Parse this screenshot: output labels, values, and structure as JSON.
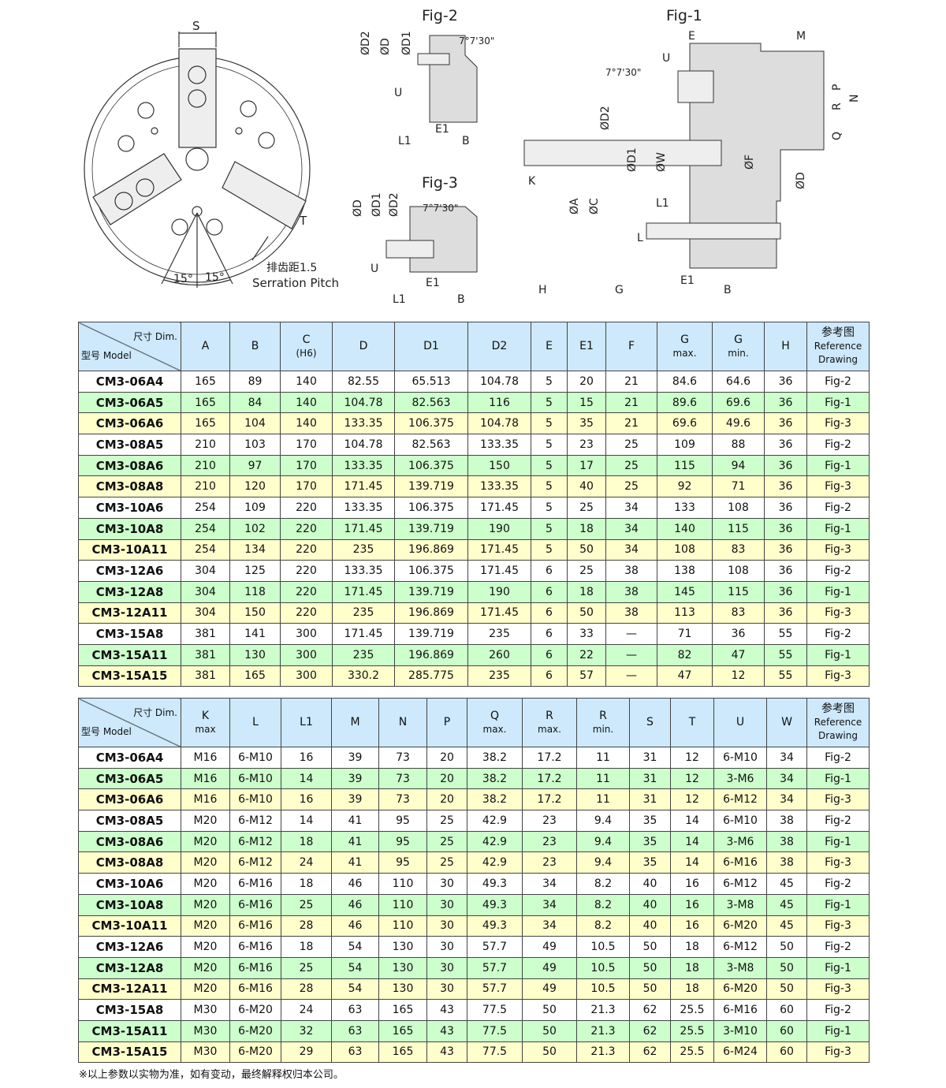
{
  "drawings": {
    "fig1": "Fig-1",
    "fig2": "Fig-2",
    "fig3": "Fig-3",
    "front": {
      "s": "S",
      "t": "T",
      "angle_left": "15°",
      "angle_right": "15°",
      "pitch_cn": "排齿距1.5",
      "pitch_en": "Serration Pitch"
    },
    "fig2_labels": [
      "ØD2",
      "ØD",
      "ØD1",
      "7°7'30\"",
      "U",
      "L1",
      "E1",
      "B"
    ],
    "fig3_labels": [
      "ØD",
      "ØD1",
      "ØD2",
      "7°7'30\"",
      "U",
      "E1",
      "L1",
      "B"
    ],
    "fig1_labels": [
      "E",
      "M",
      "U",
      "7°7'30\"",
      "ØD2",
      "ØD1",
      "ØW",
      "ØF",
      "P",
      "R",
      "N",
      "Q",
      "ØD",
      "K",
      "ØA",
      "ØC",
      "L1",
      "L",
      "H",
      "G",
      "E1",
      "B"
    ]
  },
  "table1": {
    "corner_dim": "尺寸 Dim.",
    "corner_model": "型号 Model",
    "headers": [
      [
        "A",
        ""
      ],
      [
        "B",
        ""
      ],
      [
        "C",
        "(H6)"
      ],
      [
        "D",
        ""
      ],
      [
        "D1",
        ""
      ],
      [
        "D2",
        ""
      ],
      [
        "E",
        ""
      ],
      [
        "E1",
        ""
      ],
      [
        "F",
        ""
      ],
      [
        "G",
        "max."
      ],
      [
        "G",
        "min."
      ],
      [
        "H",
        ""
      ],
      [
        "参考图",
        "Reference Drawing"
      ]
    ],
    "rows": [
      [
        "CM3-06A4",
        "165",
        "89",
        "140",
        "82.55",
        "65.513",
        "104.78",
        "5",
        "20",
        "21",
        "84.6",
        "64.6",
        "36",
        "Fig-2"
      ],
      [
        "CM3-06A5",
        "165",
        "84",
        "140",
        "104.78",
        "82.563",
        "116",
        "5",
        "15",
        "21",
        "89.6",
        "69.6",
        "36",
        "Fig-1"
      ],
      [
        "CM3-06A6",
        "165",
        "104",
        "140",
        "133.35",
        "106.375",
        "104.78",
        "5",
        "35",
        "21",
        "69.6",
        "49.6",
        "36",
        "Fig-3"
      ],
      [
        "CM3-08A5",
        "210",
        "103",
        "170",
        "104.78",
        "82.563",
        "133.35",
        "5",
        "23",
        "25",
        "109",
        "88",
        "36",
        "Fig-2"
      ],
      [
        "CM3-08A6",
        "210",
        "97",
        "170",
        "133.35",
        "106.375",
        "150",
        "5",
        "17",
        "25",
        "115",
        "94",
        "36",
        "Fig-1"
      ],
      [
        "CM3-08A8",
        "210",
        "120",
        "170",
        "171.45",
        "139.719",
        "133.35",
        "5",
        "40",
        "25",
        "92",
        "71",
        "36",
        "Fig-3"
      ],
      [
        "CM3-10A6",
        "254",
        "109",
        "220",
        "133.35",
        "106.375",
        "171.45",
        "5",
        "25",
        "34",
        "133",
        "108",
        "36",
        "Fig-2"
      ],
      [
        "CM3-10A8",
        "254",
        "102",
        "220",
        "171.45",
        "139.719",
        "190",
        "5",
        "18",
        "34",
        "140",
        "115",
        "36",
        "Fig-1"
      ],
      [
        "CM3-10A11",
        "254",
        "134",
        "220",
        "235",
        "196.869",
        "171.45",
        "5",
        "50",
        "34",
        "108",
        "83",
        "36",
        "Fig-3"
      ],
      [
        "CM3-12A6",
        "304",
        "125",
        "220",
        "133.35",
        "106.375",
        "171.45",
        "6",
        "25",
        "38",
        "138",
        "108",
        "36",
        "Fig-2"
      ],
      [
        "CM3-12A8",
        "304",
        "118",
        "220",
        "171.45",
        "139.719",
        "190",
        "6",
        "18",
        "38",
        "145",
        "115",
        "36",
        "Fig-1"
      ],
      [
        "CM3-12A11",
        "304",
        "150",
        "220",
        "235",
        "196.869",
        "171.45",
        "6",
        "50",
        "38",
        "113",
        "83",
        "36",
        "Fig-3"
      ],
      [
        "CM3-15A8",
        "381",
        "141",
        "300",
        "171.45",
        "139.719",
        "235",
        "6",
        "33",
        "—",
        "71",
        "36",
        "55",
        "Fig-2"
      ],
      [
        "CM3-15A11",
        "381",
        "130",
        "300",
        "235",
        "196.869",
        "260",
        "6",
        "22",
        "—",
        "82",
        "47",
        "55",
        "Fig-1"
      ],
      [
        "CM3-15A15",
        "381",
        "165",
        "300",
        "330.2",
        "285.775",
        "235",
        "6",
        "57",
        "—",
        "47",
        "12",
        "55",
        "Fig-3"
      ]
    ]
  },
  "table2": {
    "corner_dim": "尺寸 Dim.",
    "corner_model": "型号 Model",
    "headers": [
      [
        "K",
        "max"
      ],
      [
        "L",
        ""
      ],
      [
        "L1",
        ""
      ],
      [
        "M",
        ""
      ],
      [
        "N",
        ""
      ],
      [
        "P",
        ""
      ],
      [
        "Q",
        "max."
      ],
      [
        "R",
        "max."
      ],
      [
        "R",
        "min."
      ],
      [
        "S",
        ""
      ],
      [
        "T",
        ""
      ],
      [
        "U",
        ""
      ],
      [
        "W",
        ""
      ],
      [
        "参考图",
        "Reference Drawing"
      ]
    ],
    "rows": [
      [
        "CM3-06A4",
        "M16",
        "6-M10",
        "16",
        "39",
        "73",
        "20",
        "38.2",
        "17.2",
        "11",
        "31",
        "12",
        "6-M10",
        "34",
        "Fig-2"
      ],
      [
        "CM3-06A5",
        "M16",
        "6-M10",
        "14",
        "39",
        "73",
        "20",
        "38.2",
        "17.2",
        "11",
        "31",
        "12",
        "3-M6",
        "34",
        "Fig-1"
      ],
      [
        "CM3-06A6",
        "M16",
        "6-M10",
        "16",
        "39",
        "73",
        "20",
        "38.2",
        "17.2",
        "11",
        "31",
        "12",
        "6-M12",
        "34",
        "Fig-3"
      ],
      [
        "CM3-08A5",
        "M20",
        "6-M12",
        "14",
        "41",
        "95",
        "25",
        "42.9",
        "23",
        "9.4",
        "35",
        "14",
        "6-M10",
        "38",
        "Fig-2"
      ],
      [
        "CM3-08A6",
        "M20",
        "6-M12",
        "18",
        "41",
        "95",
        "25",
        "42.9",
        "23",
        "9.4",
        "35",
        "14",
        "3-M6",
        "38",
        "Fig-1"
      ],
      [
        "CM3-08A8",
        "M20",
        "6-M12",
        "24",
        "41",
        "95",
        "25",
        "42.9",
        "23",
        "9.4",
        "35",
        "14",
        "6-M16",
        "38",
        "Fig-3"
      ],
      [
        "CM3-10A6",
        "M20",
        "6-M16",
        "18",
        "46",
        "110",
        "30",
        "49.3",
        "34",
        "8.2",
        "40",
        "16",
        "6-M12",
        "45",
        "Fig-2"
      ],
      [
        "CM3-10A8",
        "M20",
        "6-M16",
        "25",
        "46",
        "110",
        "30",
        "49.3",
        "34",
        "8.2",
        "40",
        "16",
        "3-M8",
        "45",
        "Fig-1"
      ],
      [
        "CM3-10A11",
        "M20",
        "6-M16",
        "28",
        "46",
        "110",
        "30",
        "49.3",
        "34",
        "8.2",
        "40",
        "16",
        "6-M20",
        "45",
        "Fig-3"
      ],
      [
        "CM3-12A6",
        "M20",
        "6-M16",
        "18",
        "54",
        "130",
        "30",
        "57.7",
        "49",
        "10.5",
        "50",
        "18",
        "6-M12",
        "50",
        "Fig-2"
      ],
      [
        "CM3-12A8",
        "M20",
        "6-M16",
        "25",
        "54",
        "130",
        "30",
        "57.7",
        "49",
        "10.5",
        "50",
        "18",
        "3-M8",
        "50",
        "Fig-1"
      ],
      [
        "CM3-12A11",
        "M20",
        "6-M16",
        "28",
        "54",
        "130",
        "30",
        "57.7",
        "49",
        "10.5",
        "50",
        "18",
        "6-M20",
        "50",
        "Fig-3"
      ],
      [
        "CM3-15A8",
        "M30",
        "6-M20",
        "24",
        "63",
        "165",
        "43",
        "77.5",
        "50",
        "21.3",
        "62",
        "25.5",
        "6-M16",
        "60",
        "Fig-2"
      ],
      [
        "CM3-15A11",
        "M30",
        "6-M20",
        "32",
        "63",
        "165",
        "43",
        "77.5",
        "50",
        "21.3",
        "62",
        "25.5",
        "3-M10",
        "60",
        "Fig-1"
      ],
      [
        "CM3-15A15",
        "M30",
        "6-M20",
        "29",
        "63",
        "165",
        "43",
        "77.5",
        "50",
        "21.3",
        "62",
        "25.5",
        "6-M24",
        "60",
        "Fig-3"
      ]
    ]
  },
  "footnote": "※以上参数以实物为准，如有变动，最终解释权归本公司。",
  "colors": {
    "header": "#cde9fb",
    "row_green": "#ccffcc",
    "row_yellow": "#ffffcc",
    "row_white": "#ffffff"
  }
}
